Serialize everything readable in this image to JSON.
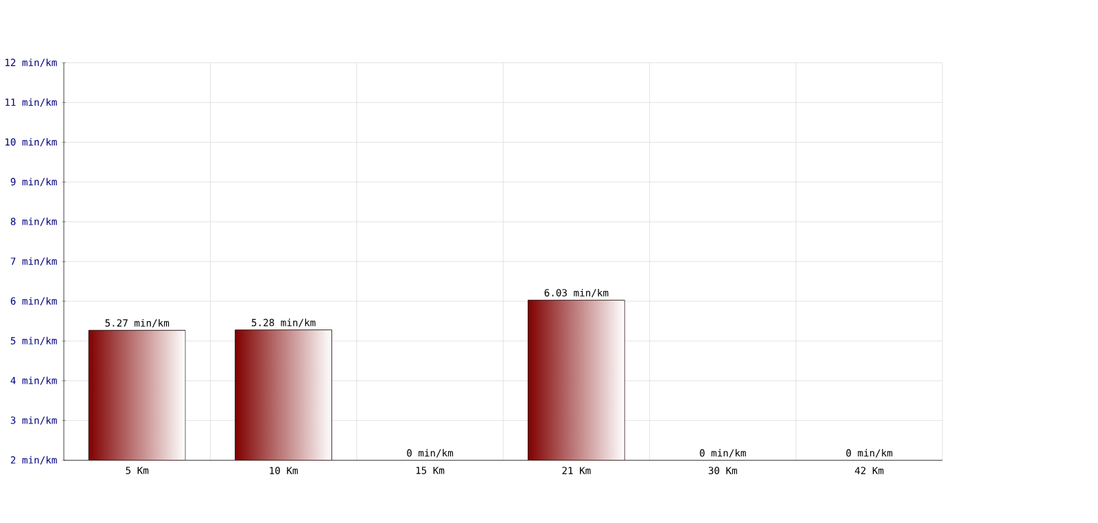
{
  "chart_data": {
    "type": "bar",
    "categories": [
      "5 Km",
      "10 Km",
      "15 Km",
      "21 Km",
      "30 Km",
      "42 Km"
    ],
    "values": [
      5.27,
      5.28,
      null,
      6.03,
      null,
      null
    ],
    "value_labels": [
      "5.27 min/km",
      "5.28 min/km",
      "0 min/km",
      "6.03 min/km",
      "0 min/km",
      "0 min/km"
    ],
    "color": "#800000",
    "ylim": [
      2,
      12
    ],
    "yticks": [
      {
        "value": 2,
        "label": "2 min/km"
      },
      {
        "value": 3,
        "label": "3 min/km"
      },
      {
        "value": 4,
        "label": "4 min/km"
      },
      {
        "value": 5,
        "label": "5 min/km"
      },
      {
        "value": 6,
        "label": "6 min/km"
      },
      {
        "value": 7,
        "label": "7 min/km"
      },
      {
        "value": 8,
        "label": "8 min/km"
      },
      {
        "value": 9,
        "label": "9 min/km"
      },
      {
        "value": 10,
        "label": "10 min/km"
      },
      {
        "value": 11,
        "label": "11 min/km"
      },
      {
        "value": 12,
        "label": "12 min/km"
      }
    ],
    "grid": true
  }
}
